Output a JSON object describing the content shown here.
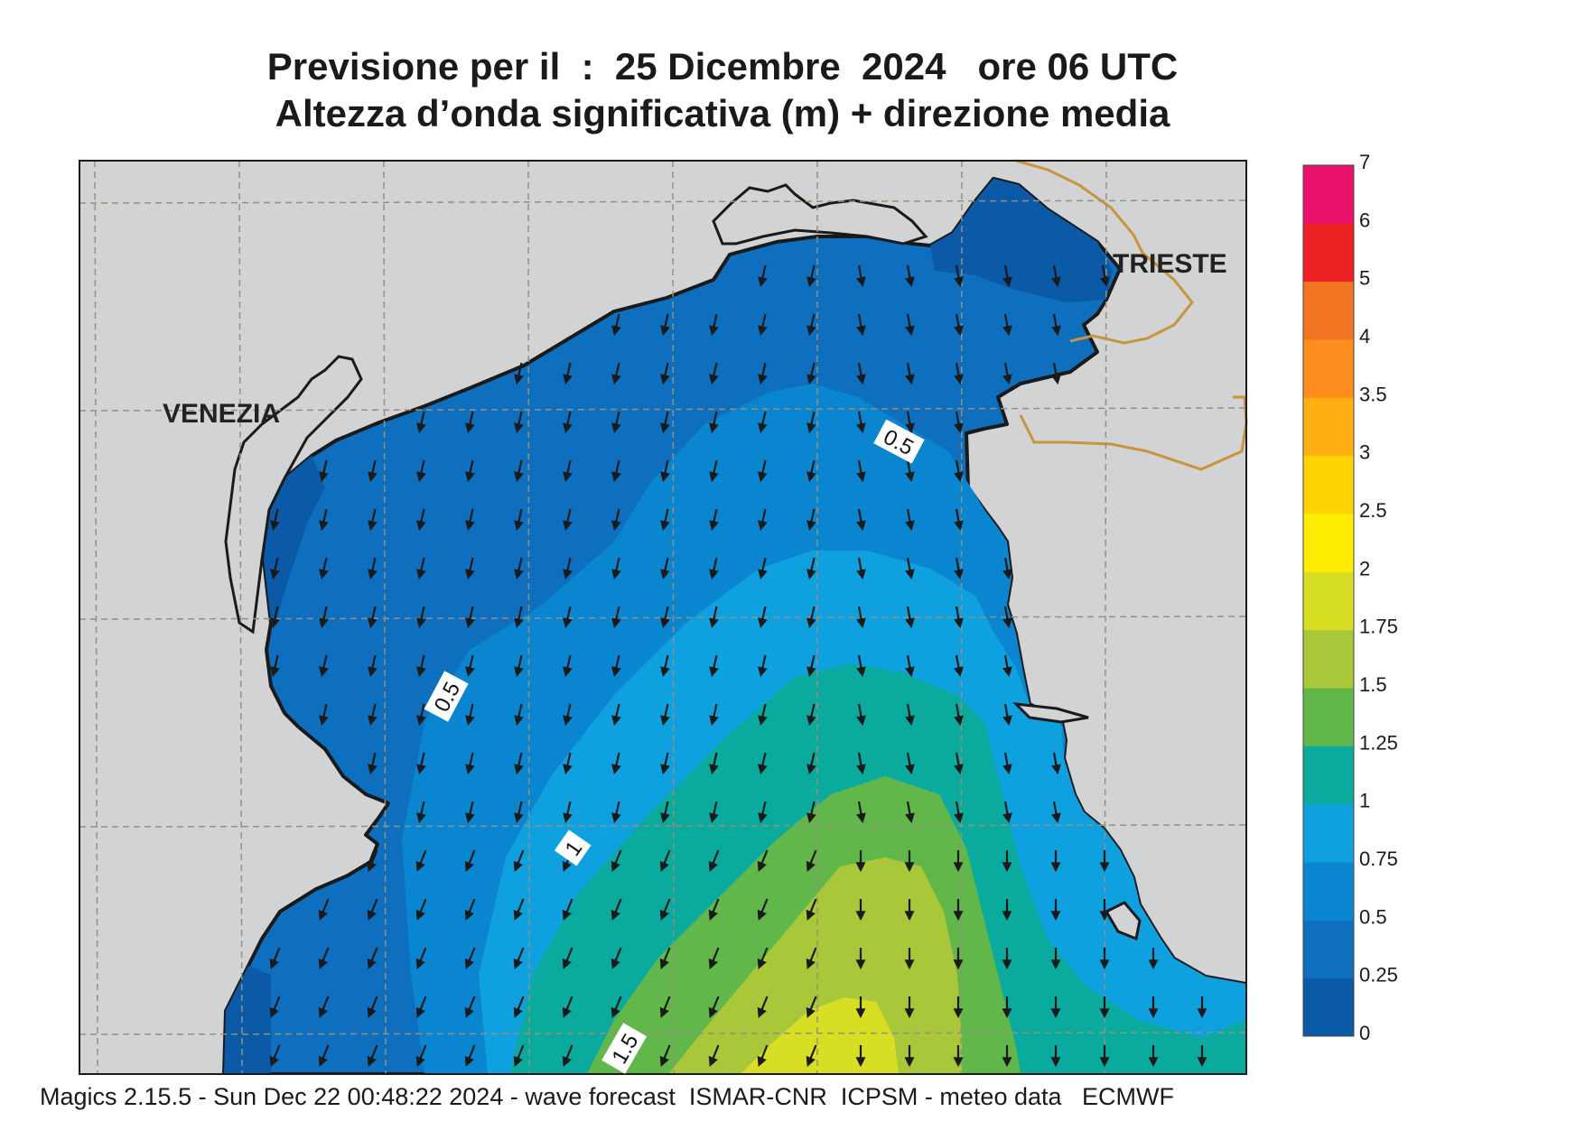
{
  "title": {
    "line1": "Previsione per il  :  25 Dicembre  2024   ore 06 UTC",
    "line2": "Altezza d’onda significativa (m) + direzione media"
  },
  "cities": {
    "venezia": "VENEZIA",
    "trieste": "TRIESTE"
  },
  "contour_labels": [
    "0.5",
    "0.5",
    "1",
    "1.5"
  ],
  "legend": {
    "ticks": [
      "0",
      "0.25",
      "0.5",
      "0.75",
      "1",
      "1.25",
      "1.5",
      "1.75",
      "2",
      "2.5",
      "3",
      "3.5",
      "4",
      "5",
      "6",
      "7"
    ],
    "colors": [
      "#0a5aa8",
      "#0d6fbd",
      "#0a86d0",
      "#0fa0e0",
      "#0aab9e",
      "#62b74a",
      "#a8c83a",
      "#d8de24",
      "#ffee00",
      "#ffd300",
      "#ffb010",
      "#ff8e1e",
      "#f27524",
      "#ee2224",
      "#e8126a"
    ]
  },
  "colors": {
    "land": "#d2d3d5",
    "coast": "#1a1a1a",
    "border": "#c8953a",
    "grid": "#9a8f7a"
  },
  "field": {
    "wave_direction": "south (arrows pointing down)",
    "max_band": "1.75 - 2"
  },
  "footer": "Magics 2.15.5 - Sun Dec 22 00:48:22 2024 - wave forecast  ISMAR-CNR  ICPSM - meteo data   ECMWF"
}
